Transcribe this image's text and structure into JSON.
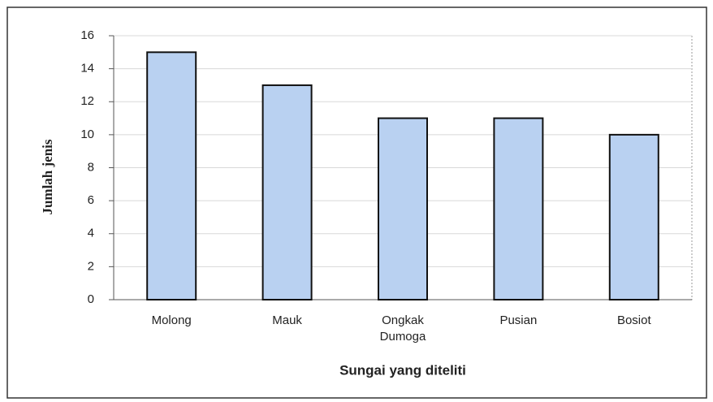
{
  "chart_data": {
    "type": "bar",
    "categories": [
      "Molong",
      "Mauk",
      "Ongkak Dumoga",
      "Pusian",
      "Bosiot"
    ],
    "values": [
      15,
      13,
      11,
      11,
      10
    ],
    "color": "#b9d1f1",
    "ylim": [
      0,
      16
    ],
    "yticks": [
      0,
      2,
      4,
      6,
      8,
      10,
      12,
      14,
      16
    ],
    "grid": true,
    "x_label": "Sungai yang diteliti",
    "y_label": "Jumlah jenis"
  }
}
